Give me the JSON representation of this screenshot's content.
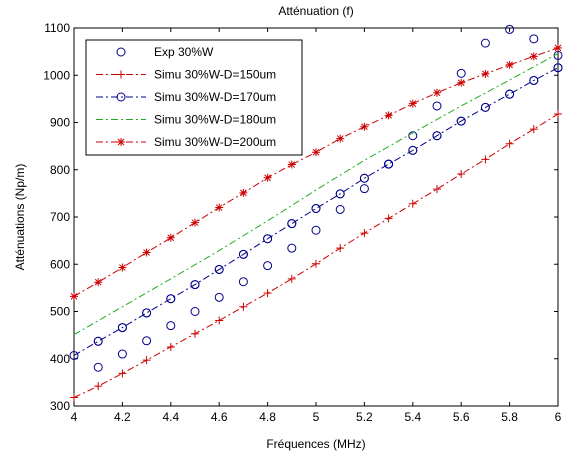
{
  "chart_data": {
    "type": "line",
    "title": "Atténuation (f)",
    "xlabel": "Fréquences (MHz)",
    "ylabel": "Atténuations (Np/m)",
    "xlim": [
      4,
      6
    ],
    "ylim": [
      300,
      1100
    ],
    "xticks": [
      4,
      4.2,
      4.4,
      4.6,
      4.8,
      5,
      5.2,
      5.4,
      5.6,
      5.8,
      6
    ],
    "yticks": [
      300,
      400,
      500,
      600,
      700,
      800,
      900,
      1000,
      1100
    ],
    "xtick_labels": [
      "4",
      "4.2",
      "4.4",
      "4.6",
      "4.8",
      "5",
      "5.2",
      "5.4",
      "5.6",
      "5.8",
      "6"
    ],
    "ytick_labels": [
      "300",
      "400",
      "500",
      "600",
      "700",
      "800",
      "900",
      "1000",
      "1100"
    ],
    "grid": false,
    "legend_position": "top-left",
    "series": [
      {
        "name": "Exp 30%W",
        "style": "markers",
        "marker": "circle",
        "color": "#00008b",
        "x": [
          4.1,
          4.1,
          4.2,
          4.2,
          4.3,
          4.3,
          4.4,
          4.4,
          4.5,
          4.5,
          4.6,
          4.6,
          4.7,
          4.7,
          4.8,
          4.8,
          4.9,
          4.9,
          5.0,
          5.0,
          5.1,
          5.1,
          5.2,
          5.2,
          5.3,
          5.3,
          5.4,
          5.4,
          5.5,
          5.5,
          5.6,
          5.6,
          5.7,
          5.7,
          5.8,
          5.8,
          5.9,
          5.9,
          6.0,
          6.0
        ],
        "y": [
          382,
          437,
          410,
          466,
          438,
          497,
          470,
          527,
          500,
          557,
          530,
          589,
          563,
          621,
          597,
          654,
          634,
          686,
          672,
          718,
          716,
          749,
          760,
          782,
          812,
          812,
          841,
          872,
          872,
          935,
          903,
          1004,
          932,
          1068,
          960,
          1097,
          989,
          1077,
          1016,
          1042
        ]
      },
      {
        "name": "Simu 30%W-D=150um",
        "style": "dashdot",
        "marker": "plus",
        "color": "#cc0000",
        "x": [
          4.0,
          4.1,
          4.2,
          4.3,
          4.4,
          4.5,
          4.6,
          4.7,
          4.8,
          4.9,
          5.0,
          5.1,
          5.2,
          5.3,
          5.4,
          5.5,
          5.6,
          5.7,
          5.8,
          5.9,
          6.0
        ],
        "y": [
          318,
          342,
          369,
          397,
          425,
          453,
          481,
          510,
          539,
          569,
          601,
          634,
          666,
          697,
          728,
          759,
          791,
          822,
          855,
          886,
          918
        ]
      },
      {
        "name": "Simu 30%W-D=170um",
        "style": "dashdot",
        "marker": "circle",
        "color": "#00008b",
        "x": [
          4.0,
          4.1,
          4.2,
          4.3,
          4.4,
          4.5,
          4.6,
          4.7,
          4.8,
          4.9,
          5.0,
          5.1,
          5.2,
          5.3,
          5.4,
          5.5,
          5.6,
          5.7,
          5.8,
          5.9,
          6.0
        ],
        "y": [
          407,
          437,
          466,
          497,
          527,
          557,
          589,
          621,
          654,
          686,
          718,
          749,
          782,
          812,
          841,
          872,
          903,
          932,
          960,
          989,
          1016
        ]
      },
      {
        "name": "Simu 30%W-D=180um",
        "style": "dashdot",
        "marker": "none",
        "color": "#22aa22",
        "x": [
          4.0,
          4.2,
          4.4,
          4.6,
          4.8,
          5.0,
          5.2,
          5.4,
          5.6,
          5.8,
          6.0
        ],
        "y": [
          451,
          510,
          569,
          629,
          692,
          757,
          820,
          878,
          935,
          990,
          1046
        ]
      },
      {
        "name": "Simu 30%W-D=200um",
        "style": "dashdot",
        "marker": "star",
        "color": "#cc0000",
        "x": [
          4.0,
          4.1,
          4.2,
          4.3,
          4.4,
          4.5,
          4.6,
          4.7,
          4.8,
          4.9,
          5.0,
          5.1,
          5.2,
          5.3,
          5.4,
          5.5,
          5.6,
          5.7,
          5.8,
          5.9,
          6.0
        ],
        "y": [
          532,
          562,
          593,
          625,
          656,
          688,
          720,
          751,
          783,
          811,
          837,
          866,
          891,
          915,
          940,
          963,
          984,
          1003,
          1022,
          1040,
          1058
        ]
      }
    ]
  }
}
